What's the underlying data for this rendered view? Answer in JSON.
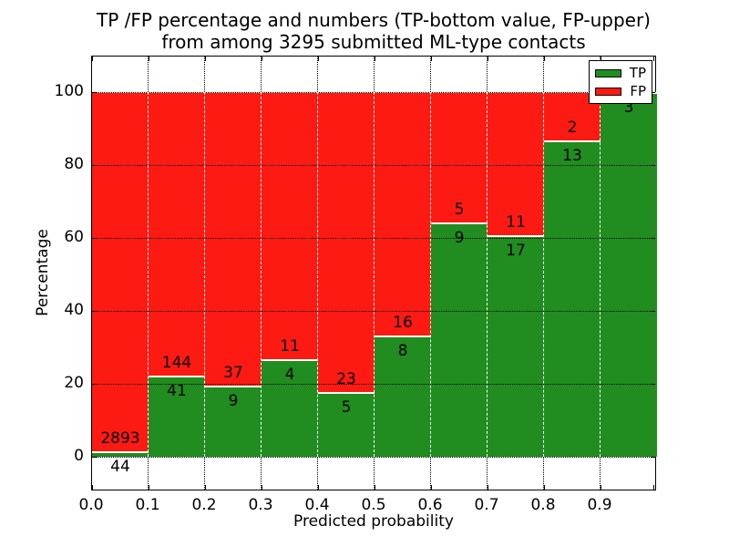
{
  "title": {
    "line1": "TP /FP percentage and numbers (TP-bottom value, FP-upper)",
    "line2": "from among 3295 submitted ML-type contacts"
  },
  "axes": {
    "xlabel": "Predicted probability",
    "ylabel": "Percentage",
    "xtick_labels": [
      "0.0",
      "0.1",
      "0.2",
      "0.3",
      "0.4",
      "0.5",
      "0.6",
      "0.7",
      "0.8",
      "0.9"
    ],
    "ytick_labels": [
      "0",
      "20",
      "40",
      "60",
      "80",
      "100"
    ],
    "ytick_values": [
      0,
      20,
      40,
      60,
      80,
      100
    ],
    "xlim": [
      0.0,
      1.0
    ],
    "ylim": [
      -10,
      110
    ],
    "grid": "dotted"
  },
  "legend": {
    "items": [
      {
        "label": "TP",
        "color": "#218c1f"
      },
      {
        "label": "FP",
        "color": "#fc1a13"
      }
    ],
    "position": "upper-right"
  },
  "colors": {
    "tp_green": "#218c1f",
    "fp_red": "#fc1a13",
    "bar_edge": "#ffffff",
    "frame": "#000000"
  },
  "chart_data": {
    "type": "bar",
    "stacked": true,
    "normalized": "each bin scaled to 100 percent; counts shown as labels (TP below boundary, FP above)",
    "total_contacts": 3295,
    "bins": [
      "0.0-0.1",
      "0.1-0.2",
      "0.2-0.3",
      "0.3-0.4",
      "0.4-0.5",
      "0.5-0.6",
      "0.6-0.7",
      "0.7-0.8",
      "0.8-0.9",
      "0.9-1.0"
    ],
    "series": [
      {
        "name": "TP",
        "color": "#218c1f",
        "values": [
          44,
          41,
          9,
          4,
          5,
          8,
          9,
          17,
          13,
          3
        ]
      },
      {
        "name": "FP",
        "color": "#fc1a13",
        "values": [
          2893,
          144,
          37,
          11,
          23,
          16,
          5,
          11,
          2,
          0
        ]
      }
    ],
    "title": "TP /FP percentage and numbers (TP-bottom value, FP-upper) from among 3295 submitted ML-type contacts",
    "xlabel": "Predicted probability",
    "ylabel": "Percentage"
  }
}
